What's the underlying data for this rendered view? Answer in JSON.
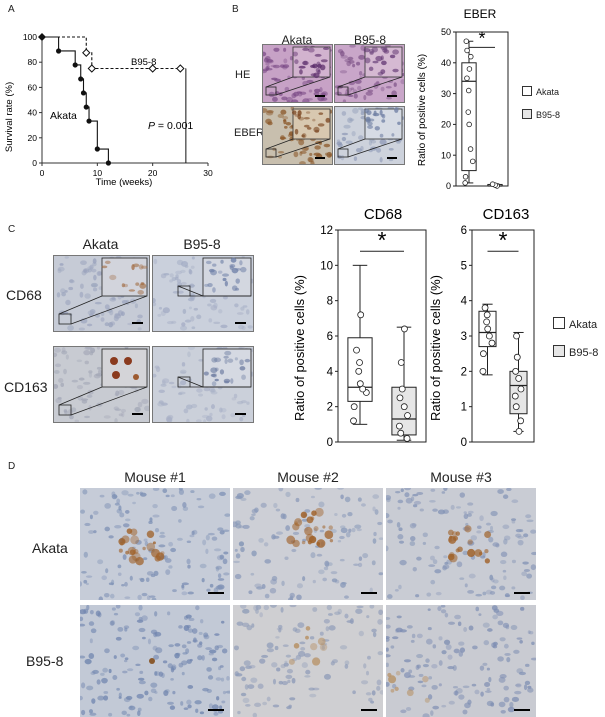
{
  "panels": {
    "A": "A",
    "B": "B",
    "C": "C",
    "D": "D"
  },
  "panelA": {
    "ylabel": "Survival rate (%)",
    "xlabel": "Time (weeks)",
    "akata_label": "Akata",
    "b958_label": "B95-8",
    "pvalue_prefix": "P",
    "pvalue_rest": " = 0.001"
  },
  "panelB": {
    "col_akata": "Akata",
    "col_b958": "B95-8",
    "row_he": "HE",
    "row_eber": "EBER",
    "chart_title": "EBER",
    "ylabel": "Ratio of positive cells (%)",
    "star": "*",
    "legend": [
      "Akata",
      "B95-8"
    ]
  },
  "panelC": {
    "col_akata": "Akata",
    "col_b958": "B95-8",
    "row_cd68": "CD68",
    "row_cd163": "CD163",
    "chart1_title": "CD68",
    "chart2_title": "CD163",
    "ylabel": "Ratio of positive cells (%)",
    "star": "*",
    "legend": [
      "Akata",
      "B95-8"
    ]
  },
  "panelD": {
    "cols": [
      "Mouse #1",
      "Mouse #2",
      "Mouse #3"
    ],
    "rows": [
      "Akata",
      "B95-8"
    ]
  },
  "colors": {
    "he_bg": "#c9a0c8",
    "ihc_bg": "#c9d0dc",
    "brown_stain": "#a0622a",
    "box_akata": "#ffffff",
    "box_b958": "#e6e6e6"
  },
  "chart_data": [
    {
      "type": "line",
      "xlabel": "Time (weeks)",
      "ylabel": "Survival rate (%)",
      "xlim": [
        0,
        30
      ],
      "ylim": [
        0,
        100
      ],
      "xticks": [
        0,
        10,
        20,
        30
      ],
      "yticks": [
        0,
        20,
        40,
        60,
        80,
        100
      ],
      "series": [
        {
          "name": "Akata",
          "style": "solid",
          "x": [
            0,
            3,
            6,
            7,
            7.5,
            8,
            8.5,
            10,
            12
          ],
          "y": [
            100,
            88.9,
            77.8,
            66.7,
            55.6,
            44.4,
            33.3,
            11.1,
            0
          ]
        },
        {
          "name": "B95-8",
          "style": "dashed",
          "x": [
            0,
            8,
            9,
            20,
            25,
            26
          ],
          "y": [
            100,
            87.5,
            75,
            75,
            75,
            75
          ]
        }
      ]
    },
    {
      "type": "box",
      "title": "EBER",
      "ylabel": "Ratio of positive cells (%)",
      "ylim": [
        0,
        50
      ],
      "yticks": [
        0,
        10,
        20,
        30,
        40,
        50
      ],
      "significance": "*",
      "series": [
        {
          "name": "Akata",
          "min": 1,
          "q1": 5,
          "median": 34,
          "q3": 40,
          "max": 47,
          "points": [
            1,
            3,
            8,
            12,
            20,
            24,
            31,
            35,
            38,
            42,
            44,
            47
          ]
        },
        {
          "name": "B95-8",
          "min": 0,
          "q1": 0,
          "median": 0,
          "q3": 0.5,
          "max": 0.7,
          "points": [
            0,
            0.3,
            0.6
          ]
        }
      ]
    },
    {
      "type": "box",
      "title": "CD68",
      "ylabel": "Ratio of positive cells (%)",
      "ylim": [
        0,
        12
      ],
      "yticks": [
        0,
        2,
        4,
        6,
        8,
        10,
        12
      ],
      "significance": "*",
      "series": [
        {
          "name": "Akata",
          "min": 1,
          "q1": 2.3,
          "median": 3.1,
          "q3": 5.9,
          "max": 10,
          "points": [
            1.2,
            2.0,
            2.8,
            3.0,
            3.3,
            4.0,
            4.5,
            5.2,
            7.2
          ]
        },
        {
          "name": "B95-8",
          "min": 0.1,
          "q1": 0.4,
          "median": 1.3,
          "q3": 3.1,
          "max": 6.5,
          "points": [
            0.2,
            0.5,
            0.9,
            1.5,
            2.0,
            2.5,
            3.0,
            4.5,
            6.4
          ]
        }
      ]
    },
    {
      "type": "box",
      "title": "CD163",
      "ylabel": "Ratio of positive cells (%)",
      "ylim": [
        0,
        6
      ],
      "yticks": [
        0,
        1,
        2,
        3,
        4,
        5,
        6
      ],
      "significance": "*",
      "series": [
        {
          "name": "Akata",
          "min": 1.9,
          "q1": 2.7,
          "median": 3.1,
          "q3": 3.7,
          "max": 3.9,
          "points": [
            2.0,
            2.5,
            2.8,
            3.0,
            3.2,
            3.4,
            3.6,
            3.8
          ]
        },
        {
          "name": "B95-8",
          "min": 0.3,
          "q1": 0.8,
          "median": 1.6,
          "q3": 2.0,
          "max": 3.1,
          "points": [
            0.3,
            0.6,
            1.0,
            1.3,
            1.5,
            1.8,
            2.0,
            2.4,
            3.0
          ]
        }
      ]
    }
  ]
}
